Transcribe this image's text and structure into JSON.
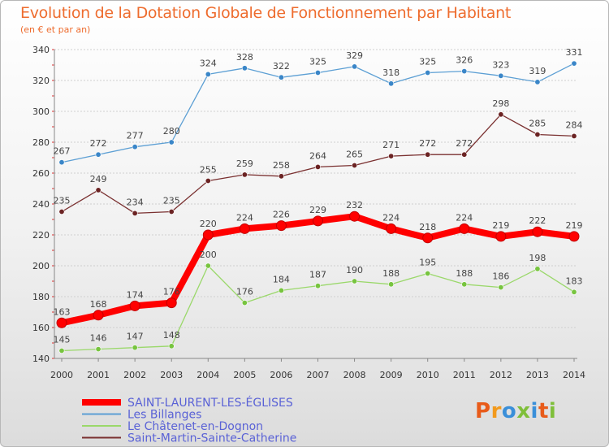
{
  "title": "Evolution de la Dotation Globale de Fonctionnement par Habitant",
  "subtitle": "(en € et par an)",
  "logo": {
    "text": "Proxiti",
    "colors": [
      "#e85b1a",
      "#f29a1d",
      "#3a8fd9",
      "#7fbf3a",
      "#3a8fd9",
      "#e85b1a",
      "#7fbf3a"
    ]
  },
  "chart_data": {
    "type": "line",
    "title": "Evolution de la Dotation Globale de Fonctionnement par Habitant",
    "ylabel": "(en € et par an)",
    "xlabel": "",
    "ylim": [
      140,
      340
    ],
    "y_ticks": [
      "140",
      "160",
      "180",
      "200",
      "220",
      "240",
      "260",
      "280",
      "300",
      "320",
      "340"
    ],
    "grid": true,
    "legend_position": "bottom-left",
    "categories": [
      "2000",
      "2001",
      "2002",
      "2003",
      "2004",
      "2005",
      "2006",
      "2007",
      "2008",
      "2009",
      "2010",
      "2011",
      "2012",
      "2013",
      "2014"
    ],
    "series": [
      {
        "name": "SAINT-LAURENT-LES-ÉGLISES",
        "color": "#ff0000",
        "emphasis": true,
        "values": [
          163,
          168,
          174,
          176,
          220,
          224,
          226,
          229,
          232,
          224,
          218,
          224,
          219,
          222,
          219
        ]
      },
      {
        "name": "Les Billanges",
        "color": "#5c9fd4",
        "marker": "#3a86c8",
        "values": [
          267,
          272,
          277,
          280,
          324,
          328,
          322,
          325,
          329,
          318,
          325,
          326,
          323,
          319,
          331
        ]
      },
      {
        "name": "Le Châtenet-en-Dognon",
        "color": "#9ad86a",
        "marker": "#77c43f",
        "values": [
          145,
          146,
          147,
          148,
          200,
          176,
          184,
          187,
          190,
          188,
          195,
          188,
          186,
          198,
          183
        ]
      },
      {
        "name": "Saint-Martin-Sainte-Catherine",
        "color": "#7a3030",
        "marker": "#6b2323",
        "values": [
          235,
          249,
          234,
          235,
          255,
          259,
          258,
          264,
          265,
          271,
          272,
          272,
          298,
          285,
          284
        ]
      }
    ]
  }
}
